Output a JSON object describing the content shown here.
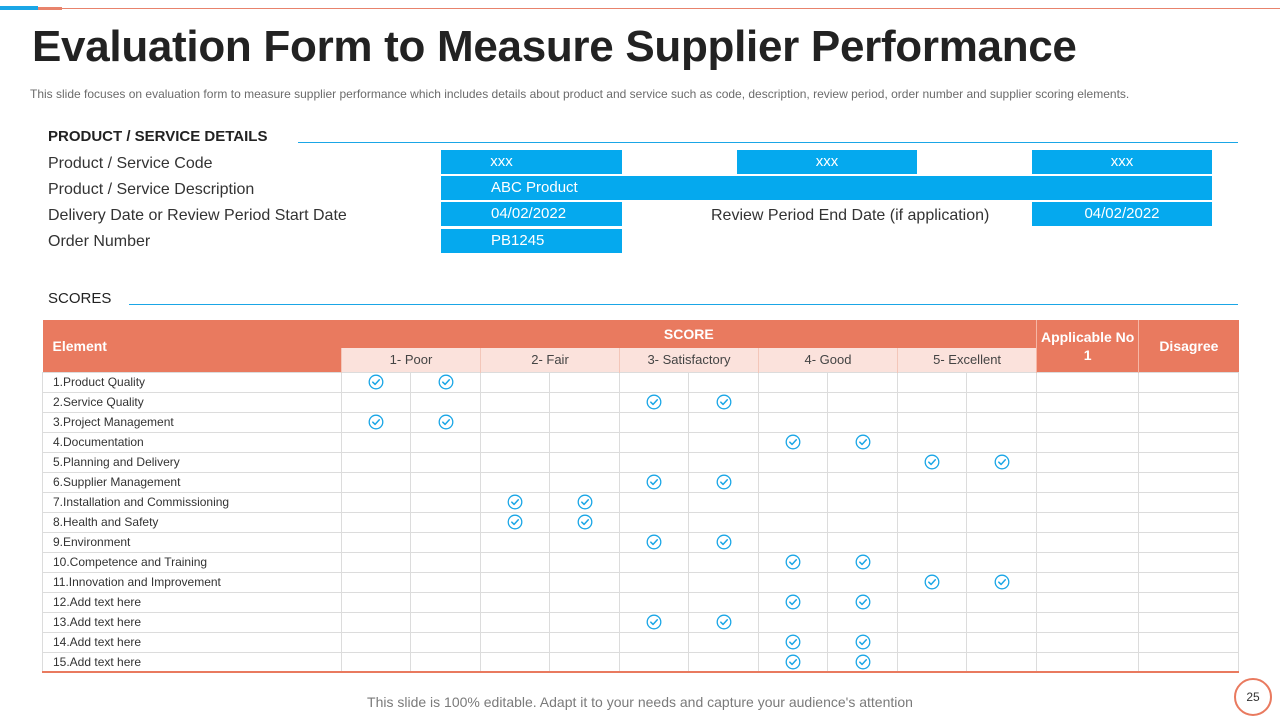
{
  "slide": {
    "title": "Evaluation Form to Measure Supplier Performance",
    "subtitle": "This slide focuses on evaluation form to measure supplier performance which includes details about product and service such as code, description, review period, order number and supplier scoring elements.",
    "footer": "This slide is 100% editable. Adapt it to your needs and capture your audience's attention",
    "page_number": "25"
  },
  "details": {
    "heading": "PRODUCT / SERVICE DETAILS",
    "code_label": "Product / Service Code",
    "code_values": [
      "xxx",
      "xxx",
      "xxx"
    ],
    "description_label": "Product / Service Description",
    "description_value": "ABC Product",
    "start_label": "Delivery Date or Review Period Start Date",
    "start_value": "04/02/2022",
    "end_label": "Review Period End Date (if application)",
    "end_value": "04/02/2022",
    "order_label": "Order Number",
    "order_value": "PB1245"
  },
  "scores": {
    "heading": "SCORES",
    "element_header": "Element",
    "score_header": "SCORE",
    "levels": [
      "1- Poor",
      "2- Fair",
      "3- Satisfactory",
      "4- Good",
      "5- Excellent"
    ],
    "applicable_header": "Applicable No 1",
    "disagree_header": "Disagree",
    "rows": [
      {
        "element": "1.Product Quality",
        "level": 1
      },
      {
        "element": "2.Service Quality",
        "level": 3
      },
      {
        "element": "3.Project Management",
        "level": 1
      },
      {
        "element": "4.Documentation",
        "level": 4
      },
      {
        "element": "5.Planning and Delivery",
        "level": 5
      },
      {
        "element": "6.Supplier Management",
        "level": 3
      },
      {
        "element": "7.Installation and Commissioning",
        "level": 2
      },
      {
        "element": "8.Health and Safety",
        "level": 2
      },
      {
        "element": "9.Environment",
        "level": 3
      },
      {
        "element": "10.Competence and Training",
        "level": 4
      },
      {
        "element": "11.Innovation and Improvement",
        "level": 5
      },
      {
        "element": "12.Add text here",
        "level": 4
      },
      {
        "element": "13.Add text here",
        "level": 3
      },
      {
        "element": "14.Add text here",
        "level": 4
      },
      {
        "element": "15.Add text here",
        "level": 4
      }
    ]
  },
  "colors": {
    "accent_blue": "#05a9ee",
    "accent_coral": "#e97a5f",
    "check_blue": "#1aa6e6"
  },
  "icons": {
    "score_mark": "check-circle-icon"
  }
}
